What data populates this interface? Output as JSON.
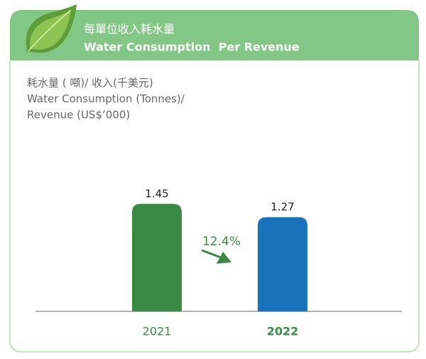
{
  "chart_data": {
    "type": "bar",
    "title": "每單位收入耗水量",
    "subtitle": "Water Consumption  Per Revenue",
    "ylabel": [
      "耗水量 ( 噸)/ 收入(千美元)",
      "Water Consumption (Tonnes)/",
      "Revenue (US$’000)"
    ],
    "categories": [
      "2021",
      "2022"
    ],
    "values": [
      1.45,
      1.27
    ],
    "colors": [
      "#3a8a45",
      "#1a72bb"
    ],
    "annotation": "12.4%"
  }
}
